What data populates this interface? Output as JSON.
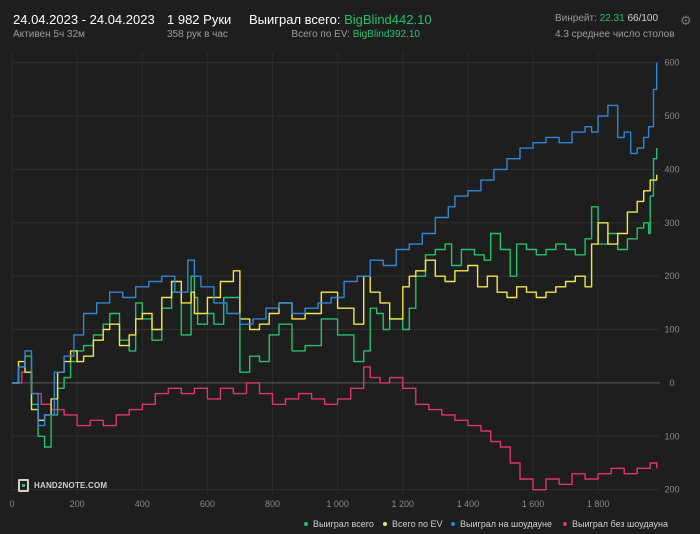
{
  "header": {
    "date_range": "24.04.2023 - 24.04.2023",
    "active": "Активен 5ч 32м",
    "hands": "1 982 Руки",
    "hands_per_hour": "358 рук в час",
    "won_label": "Выиграл всего:",
    "won_value": "BigBlind442.10",
    "ev_label": "Всего по EV:",
    "ev_value": "BigBlind392.10",
    "winrate_label": "Винрейт:",
    "winrate_value": "22.31",
    "winrate_count": "66/100",
    "tables": "4.3 среднее число столов"
  },
  "icons": {
    "settings": "gear-icon",
    "logo": "hand2note-logo"
  },
  "logo_text": "HAND2NOTE.COM",
  "colors": {
    "background": "#1e1e1e",
    "won_total": "#23c16b",
    "ev": "#f2e64a",
    "showdown": "#2f86d6",
    "no_showdown": "#e0336f"
  },
  "chart_data": {
    "type": "line",
    "xlabel": "",
    "ylabel": "",
    "xlim": [
      0,
      1990
    ],
    "ylim": [
      -210,
      620
    ],
    "x_ticks": [
      0,
      200,
      400,
      600,
      800,
      1000,
      1200,
      1400,
      1600,
      1800
    ],
    "x_tick_labels": [
      "0",
      "200",
      "400",
      "600",
      "800",
      "1 000",
      "1 200",
      "1 400",
      "1 600",
      "1 800"
    ],
    "y_ticks": [
      -200,
      -100,
      0,
      100,
      200,
      300,
      400,
      500,
      600
    ],
    "y_tick_labels": [
      "200",
      "100",
      "0",
      "100",
      "200",
      "300",
      "400",
      "500",
      "600"
    ],
    "grid": true,
    "legend_position": "bottom-right",
    "series": [
      {
        "name": "Выиграл всего",
        "color": "#23c16b",
        "x": [
          0,
          20,
          40,
          60,
          80,
          100,
          120,
          140,
          160,
          180,
          200,
          220,
          250,
          280,
          300,
          330,
          360,
          380,
          400,
          430,
          460,
          490,
          520,
          550,
          560,
          570,
          600,
          620,
          650,
          700,
          730,
          760,
          790,
          820,
          860,
          900,
          950,
          1000,
          1050,
          1080,
          1100,
          1120,
          1140,
          1160,
          1200,
          1220,
          1240,
          1270,
          1300,
          1330,
          1350,
          1380,
          1420,
          1450,
          1470,
          1500,
          1530,
          1550,
          1580,
          1610,
          1640,
          1670,
          1700,
          1730,
          1760,
          1780,
          1800,
          1830,
          1860,
          1890,
          1920,
          1940,
          1955,
          1960,
          1970,
          1980
        ],
        "y": [
          0,
          30,
          50,
          -40,
          -100,
          -120,
          -60,
          -10,
          10,
          40,
          60,
          70,
          90,
          110,
          130,
          80,
          60,
          150,
          120,
          80,
          140,
          170,
          90,
          200,
          160,
          110,
          130,
          110,
          160,
          20,
          50,
          40,
          90,
          110,
          60,
          70,
          120,
          90,
          40,
          60,
          140,
          130,
          100,
          120,
          100,
          140,
          200,
          240,
          250,
          260,
          220,
          250,
          240,
          230,
          280,
          250,
          200,
          260,
          250,
          240,
          250,
          260,
          250,
          240,
          270,
          330,
          260,
          280,
          250,
          270,
          290,
          300,
          280,
          350,
          420,
          440
        ]
      },
      {
        "name": "Всего по EV",
        "color": "#f2e64a",
        "x": [
          0,
          20,
          40,
          60,
          80,
          100,
          120,
          140,
          160,
          180,
          200,
          220,
          250,
          280,
          300,
          330,
          360,
          380,
          400,
          430,
          460,
          490,
          520,
          550,
          560,
          600,
          640,
          680,
          700,
          730,
          760,
          790,
          820,
          860,
          900,
          950,
          1000,
          1050,
          1080,
          1100,
          1130,
          1160,
          1200,
          1220,
          1240,
          1270,
          1300,
          1330,
          1360,
          1400,
          1430,
          1460,
          1490,
          1520,
          1550,
          1580,
          1610,
          1640,
          1670,
          1700,
          1730,
          1760,
          1780,
          1800,
          1830,
          1860,
          1890,
          1920,
          1940,
          1960,
          1980
        ],
        "y": [
          0,
          40,
          20,
          -50,
          -70,
          -60,
          -30,
          20,
          40,
          60,
          40,
          50,
          80,
          100,
          110,
          70,
          90,
          120,
          130,
          100,
          160,
          190,
          150,
          170,
          130,
          160,
          190,
          210,
          120,
          100,
          110,
          130,
          150,
          120,
          130,
          170,
          140,
          110,
          200,
          170,
          150,
          120,
          180,
          200,
          210,
          230,
          200,
          190,
          210,
          220,
          180,
          200,
          170,
          160,
          180,
          170,
          160,
          170,
          180,
          190,
          200,
          180,
          260,
          300,
          260,
          280,
          320,
          340,
          360,
          380,
          390
        ]
      },
      {
        "name": "Выиграл на шоудауне",
        "color": "#2f86d6",
        "x": [
          0,
          20,
          40,
          60,
          80,
          100,
          130,
          160,
          190,
          220,
          260,
          300,
          340,
          380,
          420,
          460,
          500,
          540,
          560,
          580,
          620,
          660,
          700,
          740,
          780,
          820,
          860,
          900,
          940,
          980,
          1020,
          1060,
          1100,
          1140,
          1180,
          1220,
          1260,
          1300,
          1340,
          1360,
          1400,
          1440,
          1480,
          1520,
          1560,
          1600,
          1640,
          1680,
          1720,
          1760,
          1780,
          1800,
          1830,
          1860,
          1880,
          1900,
          1920,
          1940,
          1955,
          1970,
          1980
        ],
        "y": [
          0,
          30,
          60,
          -20,
          -80,
          -60,
          20,
          50,
          90,
          130,
          150,
          170,
          160,
          180,
          190,
          200,
          170,
          230,
          200,
          180,
          150,
          130,
          110,
          120,
          140,
          150,
          130,
          140,
          150,
          160,
          190,
          200,
          230,
          220,
          250,
          260,
          280,
          310,
          330,
          350,
          360,
          380,
          400,
          420,
          440,
          450,
          460,
          450,
          470,
          480,
          470,
          500,
          520,
          460,
          470,
          430,
          440,
          460,
          480,
          550,
          600
        ]
      },
      {
        "name": "Выиграл без шоудауна",
        "color": "#e0336f",
        "x": [
          0,
          30,
          60,
          90,
          120,
          160,
          200,
          240,
          280,
          320,
          360,
          400,
          440,
          480,
          520,
          560,
          600,
          640,
          680,
          720,
          760,
          800,
          840,
          880,
          920,
          960,
          1000,
          1040,
          1080,
          1100,
          1130,
          1160,
          1200,
          1240,
          1280,
          1320,
          1360,
          1400,
          1440,
          1470,
          1500,
          1530,
          1560,
          1600,
          1640,
          1680,
          1720,
          1760,
          1800,
          1840,
          1880,
          1920,
          1960,
          1980
        ],
        "y": [
          0,
          20,
          -20,
          -40,
          -50,
          -60,
          -80,
          -70,
          -80,
          -60,
          -50,
          -40,
          -20,
          -10,
          -20,
          -10,
          -30,
          -10,
          -20,
          0,
          -20,
          -40,
          -30,
          -20,
          -30,
          -40,
          -30,
          -10,
          30,
          10,
          0,
          10,
          -10,
          -40,
          -50,
          -60,
          -70,
          -80,
          -90,
          -110,
          -120,
          -150,
          -180,
          -200,
          -180,
          -190,
          -170,
          -180,
          -170,
          -160,
          -170,
          -160,
          -150,
          -160
        ]
      }
    ]
  }
}
